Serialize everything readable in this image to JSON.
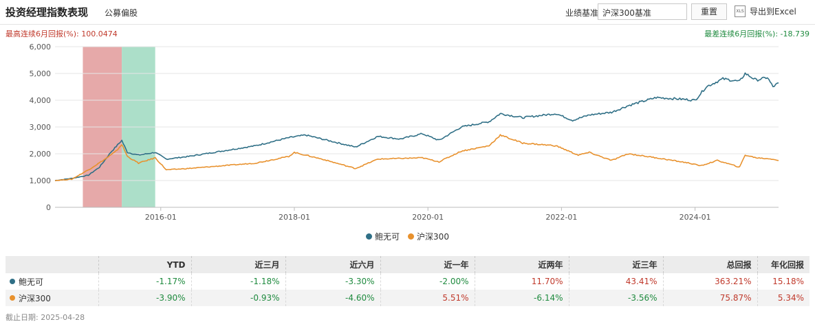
{
  "header": {
    "title": "投资经理指数表现",
    "subtitle": "公募偏股",
    "benchmark_label": "业绩基准:",
    "benchmark_value": "沪深300基准",
    "reset_label": "重置",
    "export_label": "导出到Excel",
    "export_icon": "excel-icon"
  },
  "stats": {
    "best_6m": "最高连续6月回报(%): 100.0474",
    "worst_6m": "最差连续6月回报(%): -18.739"
  },
  "chart_data": {
    "type": "line",
    "title": "",
    "xlabel": "",
    "ylabel": "",
    "ylim": [
      0,
      6000
    ],
    "yticks": [
      "0",
      "1,000",
      "2,000",
      "3,000",
      "4,000",
      "5,000",
      "6,000"
    ],
    "xticks": [
      "2016-01",
      "2018-01",
      "2020-01",
      "2022-01",
      "2024-01"
    ],
    "x_range": [
      "2014-06",
      "2025-04"
    ],
    "grid": "horizontal",
    "legend": "bottom",
    "highlight_bands": [
      {
        "start": "2014-11",
        "end": "2015-06",
        "color": "#e3a0a0"
      },
      {
        "start": "2015-06",
        "end": "2015-12",
        "color": "#a3dcc3"
      }
    ],
    "series": [
      {
        "name": "鲍无可",
        "color": "#2f6f86",
        "points": [
          [
            "2014-06",
            1000
          ],
          [
            "2014-09",
            1080
          ],
          [
            "2014-12",
            1200
          ],
          [
            "2015-02",
            1500
          ],
          [
            "2015-04",
            2050
          ],
          [
            "2015-06",
            2500
          ],
          [
            "2015-07",
            2050
          ],
          [
            "2015-09",
            1950
          ],
          [
            "2015-12",
            2050
          ],
          [
            "2016-02",
            1800
          ],
          [
            "2016-06",
            1900
          ],
          [
            "2016-12",
            2100
          ],
          [
            "2017-06",
            2300
          ],
          [
            "2017-12",
            2600
          ],
          [
            "2018-03",
            2700
          ],
          [
            "2018-06",
            2550
          ],
          [
            "2018-12",
            2250
          ],
          [
            "2019-04",
            2650
          ],
          [
            "2019-08",
            2550
          ],
          [
            "2019-12",
            2750
          ],
          [
            "2020-03",
            2500
          ],
          [
            "2020-07",
            3000
          ],
          [
            "2020-12",
            3200
          ],
          [
            "2021-02",
            3500
          ],
          [
            "2021-06",
            3350
          ],
          [
            "2021-12",
            3500
          ],
          [
            "2022-03",
            3250
          ],
          [
            "2022-06",
            3450
          ],
          [
            "2022-10",
            3550
          ],
          [
            "2023-01",
            3800
          ],
          [
            "2023-06",
            4100
          ],
          [
            "2023-10",
            4050
          ],
          [
            "2024-01",
            4000
          ],
          [
            "2024-03",
            4500
          ],
          [
            "2024-06",
            4800
          ],
          [
            "2024-09",
            4700
          ],
          [
            "2024-10",
            5000
          ],
          [
            "2024-12",
            4750
          ],
          [
            "2025-02",
            4850
          ],
          [
            "2025-03",
            4500
          ],
          [
            "2025-04",
            4650
          ]
        ]
      },
      {
        "name": "沪深300",
        "color": "#e8912d",
        "points": [
          [
            "2014-06",
            1000
          ],
          [
            "2014-09",
            1050
          ],
          [
            "2014-12",
            1400
          ],
          [
            "2015-03",
            1800
          ],
          [
            "2015-05",
            2100
          ],
          [
            "2015-06",
            2350
          ],
          [
            "2015-07",
            1900
          ],
          [
            "2015-09",
            1650
          ],
          [
            "2015-12",
            1850
          ],
          [
            "2016-02",
            1400
          ],
          [
            "2016-06",
            1450
          ],
          [
            "2016-12",
            1550
          ],
          [
            "2017-06",
            1650
          ],
          [
            "2017-12",
            1900
          ],
          [
            "2018-01",
            2050
          ],
          [
            "2018-06",
            1800
          ],
          [
            "2018-12",
            1450
          ],
          [
            "2019-04",
            1800
          ],
          [
            "2019-12",
            1850
          ],
          [
            "2020-03",
            1700
          ],
          [
            "2020-07",
            2100
          ],
          [
            "2020-12",
            2300
          ],
          [
            "2021-02",
            2700
          ],
          [
            "2021-06",
            2400
          ],
          [
            "2021-12",
            2300
          ],
          [
            "2022-04",
            1950
          ],
          [
            "2022-06",
            2050
          ],
          [
            "2022-10",
            1750
          ],
          [
            "2023-01",
            2000
          ],
          [
            "2023-06",
            1850
          ],
          [
            "2023-12",
            1650
          ],
          [
            "2024-02",
            1550
          ],
          [
            "2024-05",
            1750
          ],
          [
            "2024-09",
            1500
          ],
          [
            "2024-10",
            1950
          ],
          [
            "2024-12",
            1850
          ],
          [
            "2025-03",
            1800
          ],
          [
            "2025-04",
            1750
          ]
        ]
      }
    ]
  },
  "table": {
    "headers": [
      "",
      "YTD",
      "近三月",
      "近六月",
      "近一年",
      "近两年",
      "近三年",
      "总回报",
      "年化回报"
    ],
    "rows": [
      {
        "name": "鲍无可",
        "color": "#2f6f86",
        "values": [
          "-1.17%",
          "-1.18%",
          "-3.30%",
          "-2.00%",
          "11.70%",
          "43.41%",
          "363.21%",
          "15.18%"
        ],
        "signs": [
          "neg",
          "neg",
          "neg",
          "neg",
          "pos",
          "pos",
          "pos",
          "pos"
        ]
      },
      {
        "name": "沪深300",
        "color": "#e8912d",
        "values": [
          "-3.90%",
          "-0.93%",
          "-4.60%",
          "5.51%",
          "-6.14%",
          "-3.56%",
          "75.87%",
          "5.34%"
        ],
        "signs": [
          "neg",
          "neg",
          "neg",
          "pos",
          "neg",
          "neg",
          "pos",
          "pos"
        ]
      }
    ]
  },
  "footer": {
    "as_of": "截止日期: 2025-04-28"
  }
}
